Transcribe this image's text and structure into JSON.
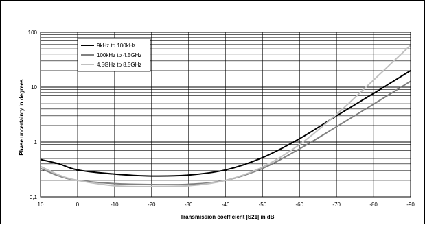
{
  "chart_data": {
    "type": "line",
    "title": "",
    "xlabel": "Transmission coefficient |S21| in dB",
    "ylabel": "Phase uncertainty in degrees",
    "x_scale": "linear",
    "x_direction": "reversed",
    "xlim": [
      10,
      -90
    ],
    "x_ticks": [
      10,
      0,
      -10,
      -20,
      -30,
      -40,
      -50,
      -60,
      -70,
      -80,
      -90
    ],
    "x_tick_labels": [
      "10",
      "0",
      "-10",
      "-20",
      "-30",
      "-40",
      "-50",
      "-60",
      "-70",
      "-80",
      "-90"
    ],
    "y_scale": "log",
    "ylim": [
      0.1,
      100
    ],
    "y_ticks": [
      0.1,
      1,
      10,
      100
    ],
    "y_tick_labels": [
      "0,1",
      "1",
      "10",
      "100"
    ],
    "grid": true,
    "legend_position": "top-left",
    "series": [
      {
        "name": "9kHz to 100kHz",
        "color": "#000000",
        "points": [
          [
            10,
            0.48
          ],
          [
            5,
            0.4
          ],
          [
            0,
            0.31
          ],
          [
            -10,
            0.26
          ],
          [
            -20,
            0.24
          ],
          [
            -30,
            0.25
          ],
          [
            -40,
            0.31
          ],
          [
            -50,
            0.52
          ],
          [
            -60,
            1.15
          ],
          [
            -70,
            3.0
          ],
          [
            -80,
            7.7
          ],
          [
            -90,
            20
          ]
        ]
      },
      {
        "name": "100kHz to 4.5GHz",
        "color": "#808080",
        "points": [
          [
            10,
            0.33
          ],
          [
            5,
            0.24
          ],
          [
            0,
            0.2
          ],
          [
            -10,
            0.175
          ],
          [
            -20,
            0.168
          ],
          [
            -30,
            0.17
          ],
          [
            -40,
            0.2
          ],
          [
            -50,
            0.33
          ],
          [
            -60,
            0.75
          ],
          [
            -70,
            1.9
          ],
          [
            -80,
            4.9
          ],
          [
            -90,
            12.8
          ]
        ]
      },
      {
        "name": "4.5GHz to 8.5GHz",
        "color": "#c0c0c0",
        "points": [
          [
            10,
            0.36
          ],
          [
            5,
            0.25
          ],
          [
            0,
            0.2
          ],
          [
            -10,
            0.16
          ],
          [
            -20,
            0.155
          ],
          [
            -30,
            0.16
          ],
          [
            -40,
            0.2
          ],
          [
            -50,
            0.35
          ],
          [
            -60,
            0.9
          ],
          [
            -70,
            3.2
          ],
          [
            -80,
            13.5
          ],
          [
            -90,
            58
          ]
        ]
      }
    ]
  }
}
